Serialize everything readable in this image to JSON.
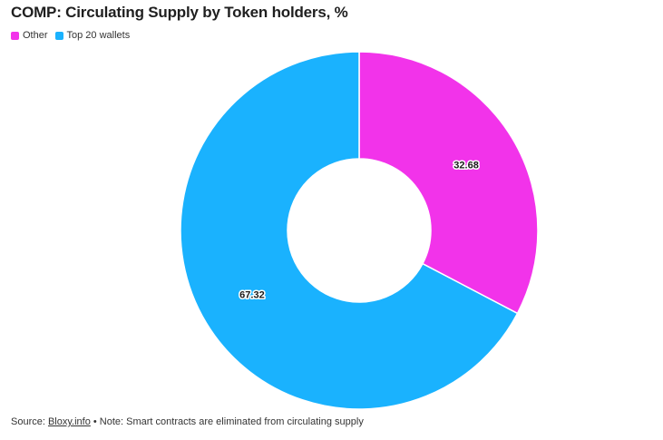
{
  "chart_data": {
    "type": "pie",
    "variant": "donut",
    "title": "COMP: Circulating Supply by Token holders, %",
    "categories": [
      "Other",
      "Top 20 wallets"
    ],
    "values": [
      32.68,
      67.32
    ],
    "data_labels": [
      "32.68",
      "67.32"
    ],
    "colors": [
      "#f233ea",
      "#1ab2fe"
    ],
    "legend": {
      "placement": "top-left",
      "entries": [
        "Other",
        "Top 20 wallets"
      ]
    }
  },
  "footer": {
    "source_prefix": "Source: ",
    "source_link": "Bloxy.info",
    "note": " • Note: Smart contracts are eliminated from circulating supply"
  }
}
